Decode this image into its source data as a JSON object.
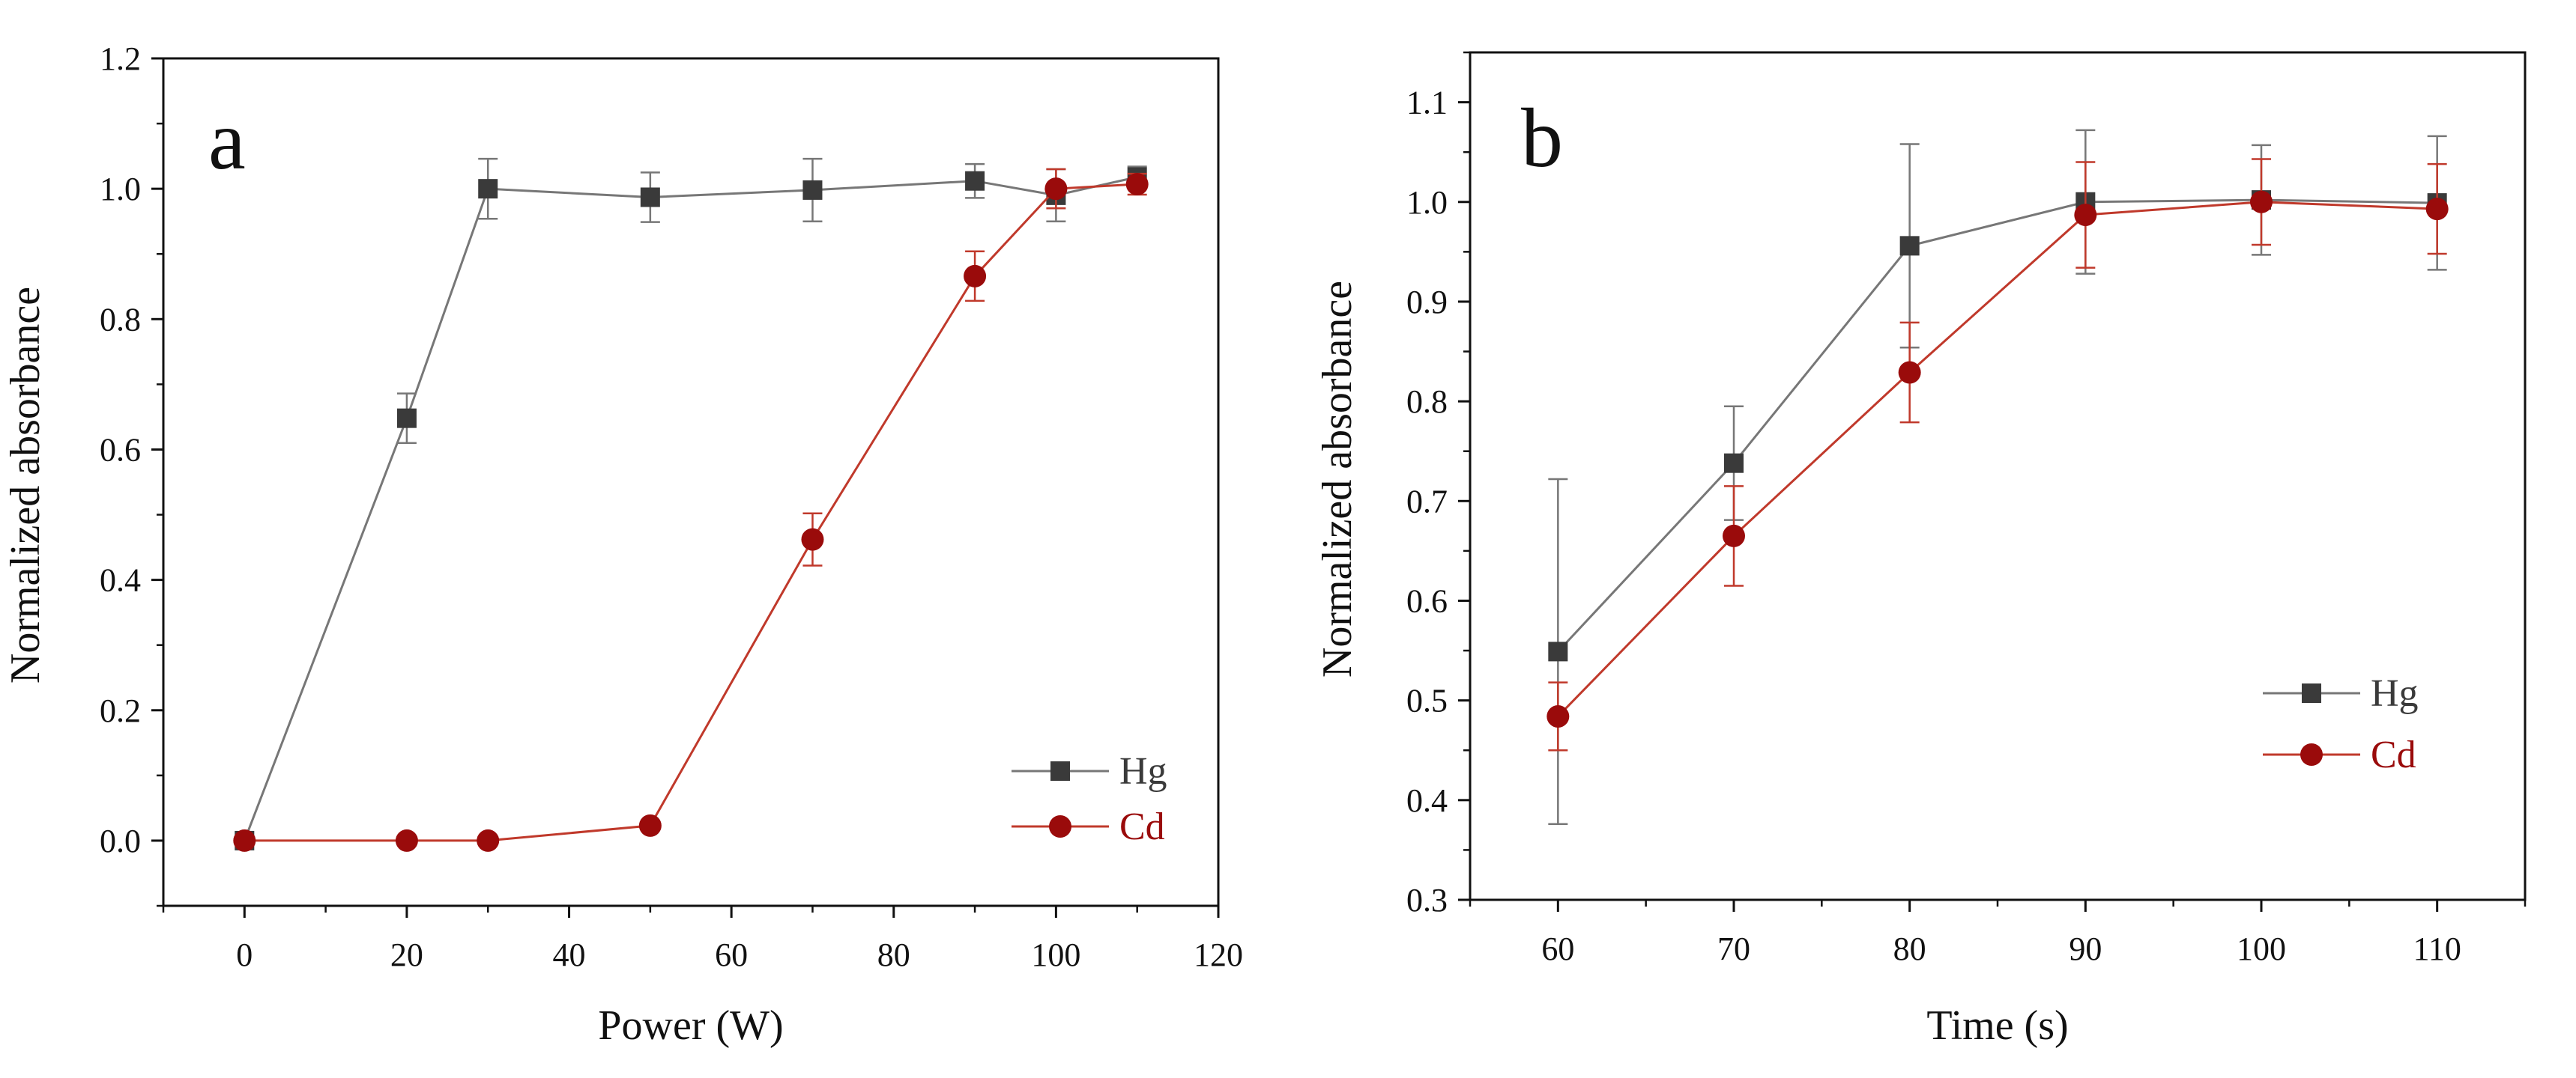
{
  "chart_data": [
    {
      "type": "line",
      "panel_label": "a",
      "xlabel": "Power (W)",
      "ylabel": "Normalized absorbance",
      "xlim": [
        -10,
        120
      ],
      "ylim": [
        -0.1,
        1.2
      ],
      "xticks": [
        0,
        20,
        40,
        60,
        80,
        100,
        120
      ],
      "xtick_labels": [
        "0",
        "20",
        "40",
        "60",
        "80",
        "100",
        "120"
      ],
      "yticks": [
        0.0,
        0.2,
        0.4,
        0.6,
        0.8,
        1.0,
        1.2
      ],
      "ytick_labels": [
        "0.0",
        "0.2",
        "0.4",
        "0.6",
        "0.8",
        "1.0",
        "1.2"
      ],
      "grid": false,
      "legend_position": "bottom-right",
      "series": [
        {
          "name": "Hg",
          "marker": "square",
          "color": "#3a3a3a",
          "line_color": "#777777",
          "x": [
            0,
            20,
            30,
            50,
            70,
            90,
            100,
            110
          ],
          "y": [
            0.0,
            0.648,
            1.0,
            0.987,
            0.998,
            1.012,
            0.99,
            1.018
          ],
          "err": [
            0.0,
            0.038,
            0.046,
            0.038,
            0.048,
            0.026,
            0.04,
            0.016
          ]
        },
        {
          "name": "Cd",
          "marker": "circle",
          "color": "#9a0b0b",
          "line_color": "#c0392b",
          "x": [
            0,
            20,
            30,
            50,
            70,
            90,
            100,
            110
          ],
          "y": [
            0.0,
            0.0,
            0.0,
            0.023,
            0.462,
            0.866,
            1.0,
            1.007
          ],
          "err": [
            0.0,
            0.0,
            0.0,
            0.0,
            0.04,
            0.038,
            0.03,
            0.016
          ]
        }
      ]
    },
    {
      "type": "line",
      "panel_label": "b",
      "xlabel": "Time (s)",
      "ylabel": "Normalized absorbance",
      "xlim": [
        55,
        115
      ],
      "ylim": [
        0.3,
        1.15
      ],
      "xticks": [
        60,
        70,
        80,
        90,
        100,
        110
      ],
      "xtick_labels": [
        "60",
        "70",
        "80",
        "90",
        "100",
        "110"
      ],
      "yticks": [
        0.3,
        0.4,
        0.5,
        0.6,
        0.7,
        0.8,
        0.9,
        1.0,
        1.1
      ],
      "ytick_labels": [
        "0.3",
        "0.4",
        "0.5",
        "0.6",
        "0.7",
        "0.8",
        "0.9",
        "1.0",
        "1.1"
      ],
      "grid": false,
      "legend_position": "bottom-right",
      "series": [
        {
          "name": "Hg",
          "marker": "square",
          "color": "#3a3a3a",
          "line_color": "#777777",
          "x": [
            60,
            70,
            80,
            90,
            100,
            110
          ],
          "y": [
            0.549,
            0.738,
            0.956,
            1.0,
            1.002,
            0.999
          ],
          "err": [
            0.173,
            0.057,
            0.102,
            0.072,
            0.055,
            0.067
          ]
        },
        {
          "name": "Cd",
          "marker": "circle",
          "color": "#9a0b0b",
          "line_color": "#c0392b",
          "x": [
            60,
            70,
            80,
            90,
            100,
            110
          ],
          "y": [
            0.484,
            0.665,
            0.829,
            0.987,
            1.0,
            0.993
          ],
          "err": [
            0.034,
            0.05,
            0.05,
            0.053,
            0.043,
            0.045
          ]
        }
      ]
    }
  ]
}
